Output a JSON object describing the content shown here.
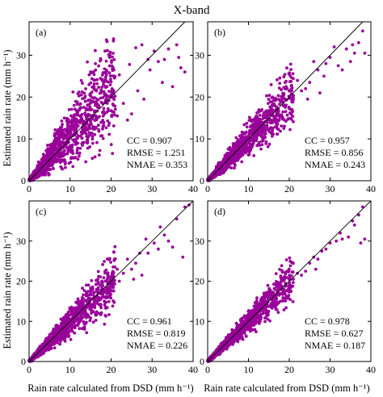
{
  "title": "X-band",
  "xlabel": "Rain rate calculated  from DSD (mm h⁻¹)",
  "ylabel": "Estimated rain rate (mm h⁻¹)",
  "colors": {
    "points": "#990099",
    "line": "#000000"
  },
  "chart_data": [
    {
      "type": "scatter",
      "panel": "(a)",
      "xlim": [
        0,
        40
      ],
      "ylim": [
        0,
        38
      ],
      "xticks": [
        0,
        10,
        20,
        30,
        40
      ],
      "yticks": [
        0,
        10,
        20,
        30
      ],
      "reference_line": "1:1",
      "stats": {
        "CC": "0.907",
        "RMSE": "1.251",
        "NMAE": "0.353"
      },
      "stat_lines": [
        "CC = 0.907",
        "RMSE = 1.251",
        "NMAE = 0.353"
      ],
      "scatter": {
        "seed": 11,
        "n": 1500,
        "noise": 0.42,
        "bias": 1.08
      },
      "points": [
        [
          20.5,
          27.0
        ],
        [
          22.0,
          25.3
        ],
        [
          24.5,
          27.8
        ],
        [
          26.0,
          31.8
        ],
        [
          27.5,
          32.5
        ],
        [
          29.0,
          29.0
        ],
        [
          30.5,
          31.0
        ],
        [
          31.5,
          28.5
        ],
        [
          33.0,
          29.0
        ],
        [
          34.0,
          31.5
        ],
        [
          35.0,
          22.5
        ],
        [
          36.0,
          32.5
        ],
        [
          37.0,
          27.0
        ],
        [
          38.0,
          26.0
        ],
        [
          36.5,
          29.5
        ],
        [
          32.5,
          23.5
        ],
        [
          29.5,
          26.5
        ],
        [
          28.0,
          19.5
        ],
        [
          18.5,
          31.0
        ],
        [
          17.5,
          29.0
        ],
        [
          15.0,
          26.0
        ],
        [
          19.0,
          22.5
        ],
        [
          23.0,
          18.5
        ],
        [
          25.0,
          16.0
        ],
        [
          21.5,
          15.5
        ],
        [
          16.0,
          24.0
        ],
        [
          26.5,
          21.5
        ],
        [
          24.0,
          14.5
        ]
      ]
    },
    {
      "type": "scatter",
      "panel": "(b)",
      "xlim": [
        0,
        40
      ],
      "ylim": [
        0,
        38
      ],
      "xticks": [
        0,
        10,
        20,
        30,
        40
      ],
      "yticks": [
        0,
        10,
        20,
        30
      ],
      "reference_line": "1:1",
      "stats": {
        "CC": "0.957",
        "RMSE": "0.856",
        "NMAE": "0.243"
      },
      "stat_lines": [
        "CC = 0.957",
        "RMSE = 0.856",
        "NMAE = 0.243"
      ],
      "scatter": {
        "seed": 23,
        "n": 1500,
        "noise": 0.27,
        "bias": 1.0
      },
      "points": [
        [
          38.0,
          35.8
        ],
        [
          37.0,
          33.0
        ],
        [
          35.5,
          32.5
        ],
        [
          34.0,
          31.5
        ],
        [
          36.0,
          30.5
        ],
        [
          31.0,
          32.0
        ],
        [
          30.0,
          29.5
        ],
        [
          29.0,
          28.0
        ],
        [
          28.5,
          25.0
        ],
        [
          27.0,
          26.5
        ],
        [
          26.0,
          28.5
        ],
        [
          25.0,
          23.5
        ],
        [
          24.0,
          22.0
        ],
        [
          23.0,
          21.5
        ],
        [
          22.0,
          24.0
        ],
        [
          21.0,
          19.5
        ],
        [
          20.0,
          21.5
        ],
        [
          19.0,
          23.5
        ],
        [
          33.0,
          26.5
        ],
        [
          35.0,
          28.5
        ],
        [
          38.5,
          30.5
        ],
        [
          32.0,
          27.5
        ],
        [
          27.5,
          21.0
        ],
        [
          24.5,
          19.5
        ]
      ]
    },
    {
      "type": "scatter",
      "panel": "(c)",
      "xlim": [
        0,
        40
      ],
      "ylim": [
        0,
        40
      ],
      "xticks": [
        0,
        10,
        20,
        30,
        40
      ],
      "yticks": [
        0,
        10,
        20,
        30
      ],
      "reference_line": "1:1",
      "stats": {
        "CC": "0.961",
        "RMSE": "0.819",
        "NMAE": "0.226"
      },
      "stat_lines": [
        "CC = 0.961",
        "RMSE = 0.819",
        "NMAE = 0.226"
      ],
      "scatter": {
        "seed": 37,
        "n": 1500,
        "noise": 0.25,
        "bias": 0.98
      },
      "points": [
        [
          38.0,
          38.5
        ],
        [
          36.0,
          35.5
        ],
        [
          37.5,
          26.0
        ],
        [
          35.0,
          28.5
        ],
        [
          33.0,
          31.5
        ],
        [
          32.0,
          33.5
        ],
        [
          30.5,
          29.5
        ],
        [
          29.0,
          27.0
        ],
        [
          28.5,
          30.5
        ],
        [
          27.0,
          27.0
        ],
        [
          26.0,
          24.5
        ],
        [
          25.0,
          23.0
        ],
        [
          24.0,
          25.5
        ],
        [
          23.0,
          22.0
        ],
        [
          22.0,
          20.0
        ],
        [
          21.5,
          23.0
        ],
        [
          20.0,
          19.0
        ],
        [
          19.5,
          21.0
        ],
        [
          31.5,
          28.0
        ],
        [
          27.5,
          21.5
        ],
        [
          34.0,
          30.0
        ],
        [
          39.0,
          39.0
        ],
        [
          25.5,
          20.5
        ]
      ]
    },
    {
      "type": "scatter",
      "panel": "(d)",
      "xlim": [
        0,
        40
      ],
      "ylim": [
        0,
        40
      ],
      "xticks": [
        0,
        10,
        20,
        30,
        40
      ],
      "yticks": [
        0,
        10,
        20,
        30
      ],
      "reference_line": "1:1",
      "stats": {
        "CC": "0.978",
        "RMSE": "0.627",
        "NMAE": "0.187"
      },
      "stat_lines": [
        "CC = 0.978",
        "RMSE = 0.627",
        "NMAE = 0.187"
      ],
      "scatter": {
        "seed": 53,
        "n": 1500,
        "noise": 0.2,
        "bias": 1.0
      },
      "points": [
        [
          38.0,
          38.5
        ],
        [
          37.0,
          36.5
        ],
        [
          36.0,
          34.0
        ],
        [
          38.5,
          30.5
        ],
        [
          37.5,
          29.5
        ],
        [
          34.5,
          31.0
        ],
        [
          33.0,
          30.5
        ],
        [
          31.5,
          30.0
        ],
        [
          30.0,
          29.5
        ],
        [
          29.0,
          28.0
        ],
        [
          28.0,
          27.5
        ],
        [
          27.0,
          25.5
        ],
        [
          26.0,
          26.0
        ],
        [
          25.0,
          24.5
        ],
        [
          24.0,
          22.5
        ],
        [
          23.0,
          21.5
        ],
        [
          22.0,
          22.0
        ],
        [
          21.0,
          20.5
        ],
        [
          20.0,
          19.0
        ],
        [
          35.5,
          35.0
        ],
        [
          32.5,
          32.0
        ],
        [
          26.5,
          23.0
        ]
      ]
    }
  ]
}
